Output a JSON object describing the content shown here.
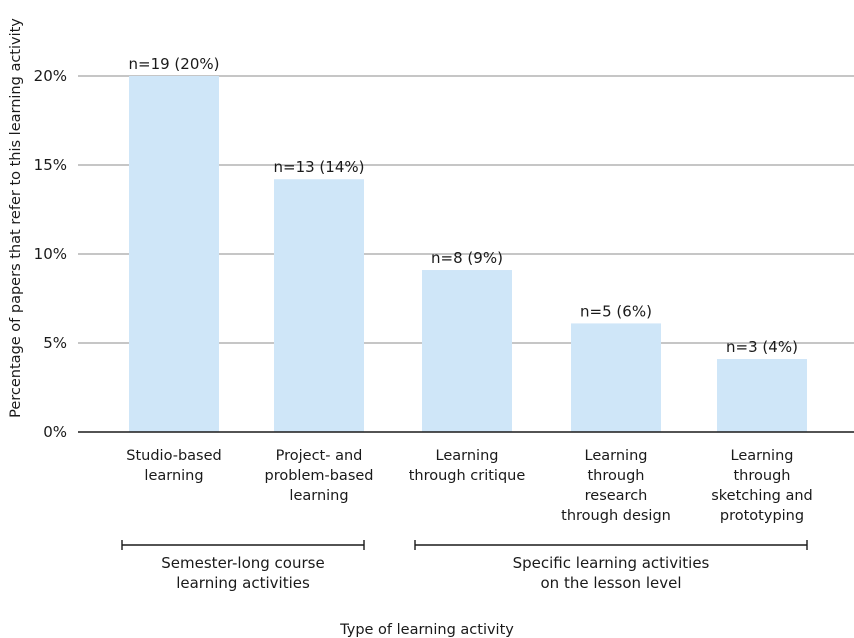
{
  "chart_data": {
    "type": "bar",
    "xlabel": "Type of learning activity",
    "ylabel": "Percentage of papers that refer to this learning activity",
    "ylim": [
      0,
      20
    ],
    "yticks": [
      "0%",
      "5%",
      "10%",
      "15%",
      "20%"
    ],
    "ytick_values": [
      0,
      5,
      10,
      15,
      20
    ],
    "grid": true,
    "bar_color": "#cfe6f8",
    "categories": [
      [
        "Studio-based",
        "learning"
      ],
      [
        "Project- and",
        "problem-based",
        "learning"
      ],
      [
        "Learning",
        "through critique"
      ],
      [
        "Learning",
        "through",
        "research",
        "through design"
      ],
      [
        "Learning",
        "through",
        "sketching and",
        "prototyping"
      ]
    ],
    "values": [
      20,
      14.2,
      9.1,
      6.1,
      4.1
    ],
    "data_labels": [
      "n=19 (20%)",
      "n=13 (14%)",
      "n=8 (9%)",
      "n=5 (6%)",
      "n=3 (4%)"
    ],
    "groups": [
      {
        "label": [
          "Semester-long course",
          "learning activities"
        ],
        "from": 0,
        "to": 1
      },
      {
        "label": [
          "Specific learning activities",
          "on the lesson level"
        ],
        "from": 2,
        "to": 4
      }
    ]
  }
}
